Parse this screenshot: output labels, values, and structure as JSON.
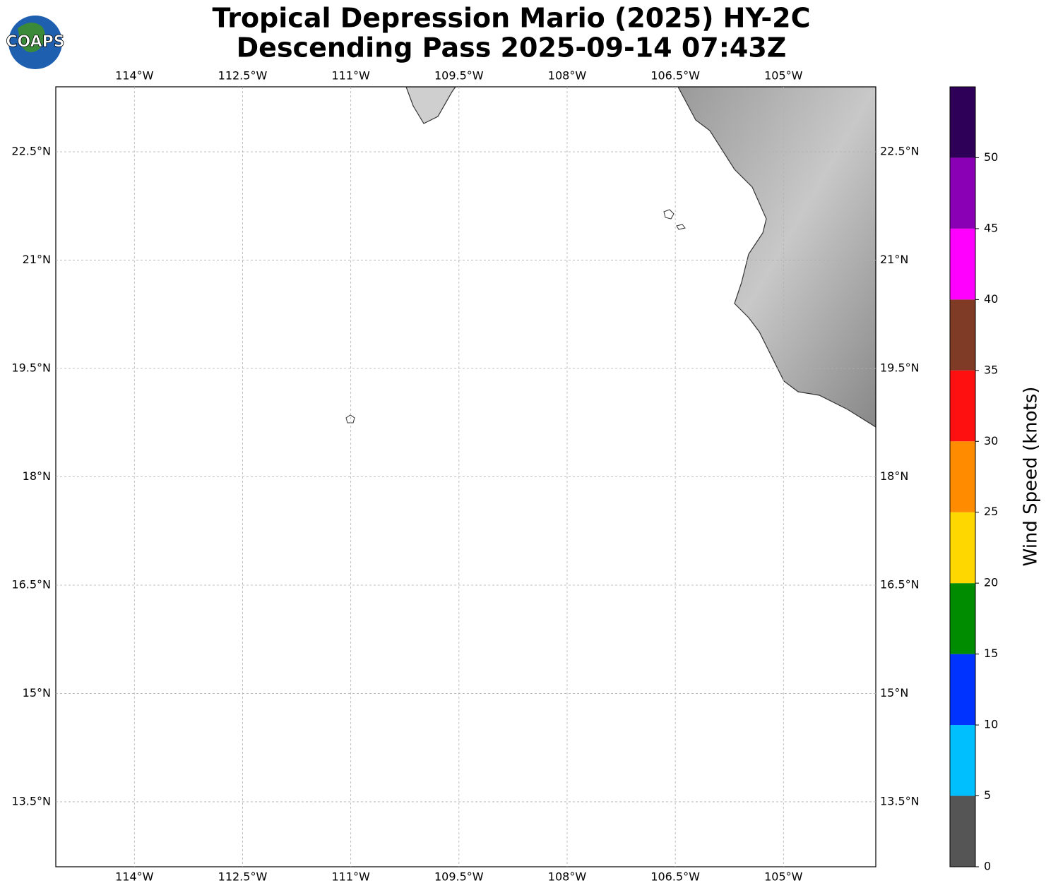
{
  "chart_data": {
    "type": "map",
    "title": [
      "Tropical Depression Mario (2025) HY-2C",
      "Descending Pass 2025-09-14 07:43Z"
    ],
    "logo": "COAPS",
    "xlim": [
      -115.09,
      -103.72
    ],
    "ylim": [
      12.6,
      23.4
    ],
    "xticks": [
      {
        "value": -114,
        "label": "114°W"
      },
      {
        "value": -112.5,
        "label": "112.5°W"
      },
      {
        "value": -111,
        "label": "111°W"
      },
      {
        "value": -109.5,
        "label": "109.5°W"
      },
      {
        "value": -108,
        "label": "108°W"
      },
      {
        "value": -106.5,
        "label": "106.5°W"
      },
      {
        "value": -105,
        "label": "105°W"
      }
    ],
    "yticks": [
      {
        "value": 13.5,
        "label": "13.5°N"
      },
      {
        "value": 15,
        "label": "15°N"
      },
      {
        "value": 16.5,
        "label": "16.5°N"
      },
      {
        "value": 18,
        "label": "18°N"
      },
      {
        "value": 19.5,
        "label": "19.5°N"
      },
      {
        "value": 21,
        "label": "21°N"
      },
      {
        "value": 22.5,
        "label": "22.5°N"
      }
    ],
    "grid": true,
    "colorbar": {
      "label": "Wind Speed (knots)",
      "lim": [
        0,
        55
      ],
      "bounds": [
        0,
        5,
        10,
        15,
        20,
        25,
        30,
        35,
        40,
        45,
        50,
        55
      ],
      "colors": [
        "#555555",
        "#00bfff",
        "#0033ff",
        "#008c00",
        "#ffd700",
        "#ff8c00",
        "#ff1010",
        "#7f3b25",
        "#ff00ff",
        "#8a00b4",
        "#2e0057"
      ],
      "ticks": [
        0,
        5,
        10,
        15,
        20,
        25,
        30,
        35,
        40,
        45,
        50
      ]
    }
  }
}
